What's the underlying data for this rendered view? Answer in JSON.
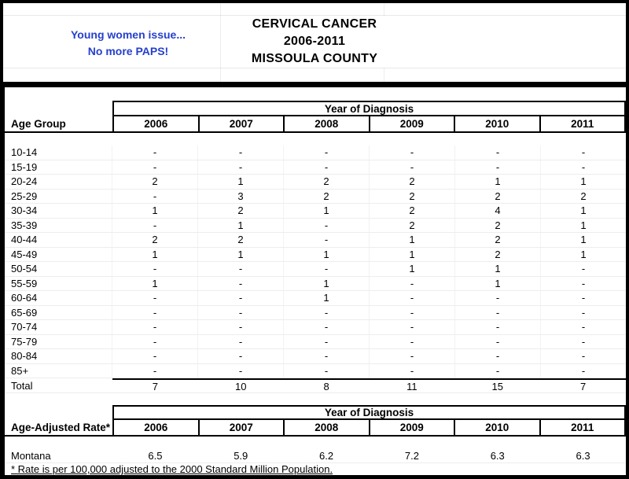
{
  "colors": {
    "annotation_blue": "#2640cc",
    "text": "#000000",
    "frame": "#000000"
  },
  "annotation": {
    "lines": [
      "Young women issue...",
      "No more PAPS!"
    ]
  },
  "title": {
    "lines": [
      "CERVICAL CANCER",
      "2006-2011",
      "MISSOULA COUNTY"
    ]
  },
  "counts_table": {
    "span_header": "Year of Diagnosis",
    "label_header": "Age Group",
    "years": [
      "2006",
      "2007",
      "2008",
      "2009",
      "2010",
      "2011"
    ],
    "rows": [
      {
        "label": "10-14",
        "values": [
          "-",
          "-",
          "-",
          "-",
          "-",
          "-"
        ]
      },
      {
        "label": "15-19",
        "values": [
          "-",
          "-",
          "-",
          "-",
          "-",
          "-"
        ]
      },
      {
        "label": "20-24",
        "values": [
          "2",
          "1",
          "2",
          "2",
          "1",
          "1"
        ]
      },
      {
        "label": "25-29",
        "values": [
          "-",
          "3",
          "2",
          "2",
          "2",
          "2"
        ]
      },
      {
        "label": "30-34",
        "values": [
          "1",
          "2",
          "1",
          "2",
          "4",
          "1"
        ]
      },
      {
        "label": "35-39",
        "values": [
          "-",
          "1",
          "-",
          "2",
          "2",
          "1"
        ]
      },
      {
        "label": "40-44",
        "values": [
          "2",
          "2",
          "-",
          "1",
          "2",
          "1"
        ]
      },
      {
        "label": "45-49",
        "values": [
          "1",
          "1",
          "1",
          "1",
          "2",
          "1"
        ]
      },
      {
        "label": "50-54",
        "values": [
          "-",
          "-",
          "-",
          "1",
          "1",
          "-"
        ]
      },
      {
        "label": "55-59",
        "values": [
          "1",
          "-",
          "1",
          "-",
          "1",
          "-"
        ]
      },
      {
        "label": "60-64",
        "values": [
          "-",
          "-",
          "1",
          "-",
          "-",
          "-"
        ]
      },
      {
        "label": "65-69",
        "values": [
          "-",
          "-",
          "-",
          "-",
          "-",
          "-"
        ]
      },
      {
        "label": "70-74",
        "values": [
          "-",
          "-",
          "-",
          "-",
          "-",
          "-"
        ]
      },
      {
        "label": "75-79",
        "values": [
          "-",
          "-",
          "-",
          "-",
          "-",
          "-"
        ]
      },
      {
        "label": "80-84",
        "values": [
          "-",
          "-",
          "-",
          "-",
          "-",
          "-"
        ]
      },
      {
        "label": "85+",
        "values": [
          "-",
          "-",
          "-",
          "-",
          "-",
          "-"
        ]
      }
    ],
    "total_row": {
      "label": "Total",
      "values": [
        "7",
        "10",
        "8",
        "11",
        "15",
        "7"
      ]
    }
  },
  "rates_table": {
    "span_header": "Year of Diagnosis",
    "label_header": "Age-Adjusted Rate*",
    "years": [
      "2006",
      "2007",
      "2008",
      "2009",
      "2010",
      "2011"
    ],
    "rows": [
      {
        "label": "Montana",
        "values": [
          "6.5",
          "5.9",
          "6.2",
          "7.2",
          "6.3",
          "6.3"
        ]
      }
    ]
  },
  "footnote": "* Rate is per 100,000 adjusted to the 2000 Standard Million Population.",
  "chart_data": [
    {
      "type": "table",
      "title": "CERVICAL CANCER 2006-2011 MISSOULA COUNTY",
      "span_header": "Year of Diagnosis",
      "columns": [
        "Age Group",
        "2006",
        "2007",
        "2008",
        "2009",
        "2010",
        "2011"
      ],
      "rows": [
        [
          "10-14",
          "-",
          "-",
          "-",
          "-",
          "-",
          "-"
        ],
        [
          "15-19",
          "-",
          "-",
          "-",
          "-",
          "-",
          "-"
        ],
        [
          "20-24",
          "2",
          "1",
          "2",
          "2",
          "1",
          "1"
        ],
        [
          "25-29",
          "-",
          "3",
          "2",
          "2",
          "2",
          "2"
        ],
        [
          "30-34",
          "1",
          "2",
          "1",
          "2",
          "4",
          "1"
        ],
        [
          "35-39",
          "-",
          "1",
          "-",
          "2",
          "2",
          "1"
        ],
        [
          "40-44",
          "2",
          "2",
          "-",
          "1",
          "2",
          "1"
        ],
        [
          "45-49",
          "1",
          "1",
          "1",
          "1",
          "2",
          "1"
        ],
        [
          "50-54",
          "-",
          "-",
          "-",
          "1",
          "1",
          "-"
        ],
        [
          "55-59",
          "1",
          "-",
          "1",
          "-",
          "1",
          "-"
        ],
        [
          "60-64",
          "-",
          "-",
          "1",
          "-",
          "-",
          "-"
        ],
        [
          "65-69",
          "-",
          "-",
          "-",
          "-",
          "-",
          "-"
        ],
        [
          "70-74",
          "-",
          "-",
          "-",
          "-",
          "-",
          "-"
        ],
        [
          "75-79",
          "-",
          "-",
          "-",
          "-",
          "-",
          "-"
        ],
        [
          "80-84",
          "-",
          "-",
          "-",
          "-",
          "-",
          "-"
        ],
        [
          "85+",
          "-",
          "-",
          "-",
          "-",
          "-",
          "-"
        ],
        [
          "Total",
          "7",
          "10",
          "8",
          "11",
          "15",
          "7"
        ]
      ]
    },
    {
      "type": "table",
      "span_header": "Year of Diagnosis",
      "columns": [
        "Age-Adjusted Rate*",
        "2006",
        "2007",
        "2008",
        "2009",
        "2010",
        "2011"
      ],
      "rows": [
        [
          "Montana",
          "6.5",
          "5.9",
          "6.2",
          "7.2",
          "6.3",
          "6.3"
        ]
      ],
      "footnote": "* Rate is per 100,000 adjusted to the 2000 Standard Million Population."
    }
  ]
}
